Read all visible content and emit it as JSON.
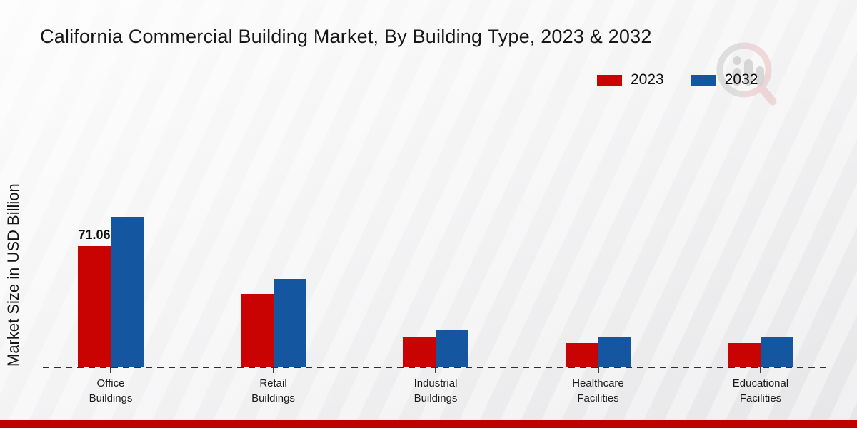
{
  "colors": {
    "series_2023": "#c90202",
    "series_2032": "#14569f",
    "footer_band": "#bd0202",
    "baseline": "#2e2e2e",
    "title_text": "#171717"
  },
  "watermark": {
    "name": "market-research-future-logo"
  },
  "chart_data": {
    "type": "bar",
    "title": "California Commercial Building Market, By Building Type, 2023 & 2032",
    "ylabel": "Market Size in USD Billion",
    "xlabel": "",
    "categories": [
      "Office Buildings",
      "Retail Buildings",
      "Industrial Buildings",
      "Healthcare Facilities",
      "Educational Facilities"
    ],
    "series": [
      {
        "name": "2023",
        "color": "#c90202",
        "values": [
          71.06,
          43.0,
          18.0,
          14.4,
          14.2
        ]
      },
      {
        "name": "2032",
        "color": "#14569f",
        "values": [
          88.3,
          52.0,
          22.2,
          17.6,
          18.0
        ]
      }
    ],
    "value_labels": [
      {
        "series": "2023",
        "category": "Office Buildings",
        "text": "71.06"
      }
    ],
    "ylim": [
      0,
      100
    ],
    "grid": false,
    "legend_position": "top-right",
    "baseline_style": "dashed"
  }
}
